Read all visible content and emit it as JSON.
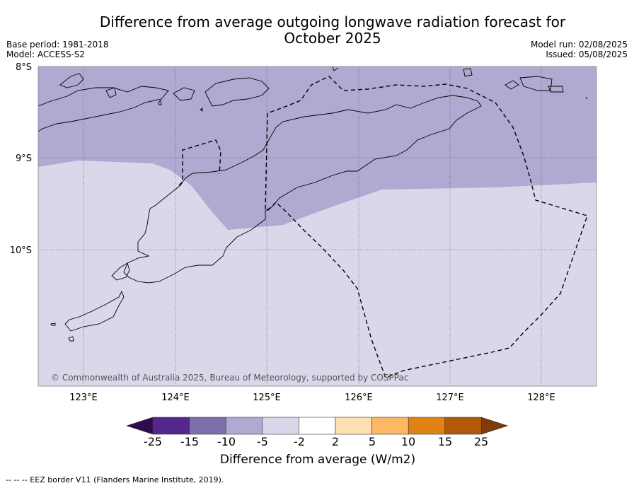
{
  "header": {
    "title_line1": "Difference from average outgoing longwave radiation forecast for",
    "title_line2": "October 2025",
    "base_period": "Base period: 1981-2018",
    "model": "Model: ACCESS-S2",
    "model_run": "Model run: 02/08/2025",
    "issued": "Issued: 05/08/2025"
  },
  "map": {
    "lat_labels": [
      "8°S",
      "9°S",
      "10°S"
    ],
    "lon_labels": [
      "123°E",
      "124°E",
      "125°E",
      "126°E",
      "127°E",
      "128°E"
    ],
    "copyright": "© Commonwealth of Australia 2025, Bureau of Meteorology, supported by COSPPac",
    "colors": {
      "anomaly_-10_-5": "#b0a9d1",
      "anomaly_-5_-2": "#d8d8ea",
      "coast": "#000000",
      "eez": "#000000"
    }
  },
  "colorbar": {
    "title": "Difference from average (W/m2)",
    "ticks": [
      "-25",
      "-15",
      "-10",
      "-5",
      "-2",
      "2",
      "5",
      "10",
      "15",
      "25"
    ],
    "colors": [
      "#2e0b4a",
      "#54278f",
      "#7d6faa",
      "#b0a9d1",
      "#d8d8ea",
      "#ffffff",
      "#fedfb2",
      "#fdb863",
      "#e08214",
      "#b35806",
      "#7f3b08"
    ]
  },
  "footer": {
    "legend": "--  --  -- EEZ border V11 (Flanders Marine Institute, 2019)."
  }
}
